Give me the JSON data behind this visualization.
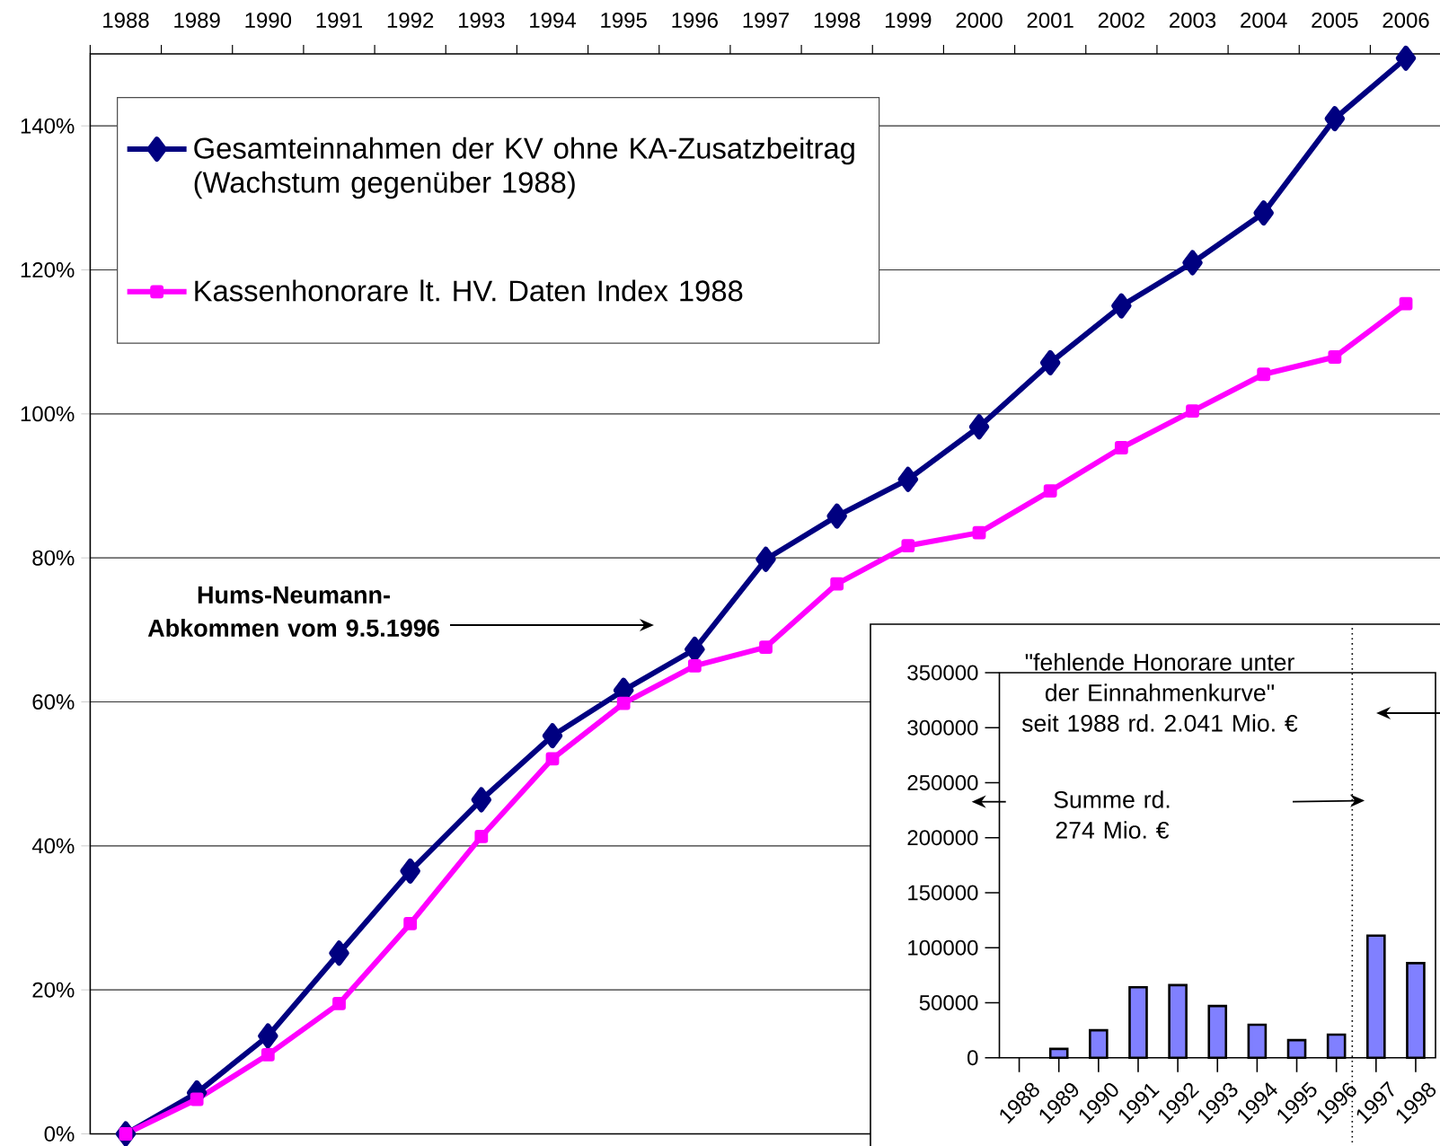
{
  "chart_data": [
    {
      "type": "line",
      "categories": [
        "1988",
        "1989",
        "1990",
        "1991",
        "1992",
        "1993",
        "1994",
        "1995",
        "1996",
        "1997",
        "1998",
        "1999",
        "2000",
        "2001",
        "2002",
        "2003",
        "2004",
        "2005",
        "2006"
      ],
      "ylim": [
        0,
        150
      ],
      "yticks": [
        {
          "value": 0,
          "label": "0%"
        },
        {
          "value": 20,
          "label": "20%"
        },
        {
          "value": 40,
          "label": "40%"
        },
        {
          "value": 60,
          "label": "60%"
        },
        {
          "value": 80,
          "label": "80%"
        },
        {
          "value": 100,
          "label": "100%"
        },
        {
          "value": 120,
          "label": "120%"
        },
        {
          "value": 140,
          "label": "140%"
        }
      ],
      "grid": "y",
      "legend": "top left",
      "line_style": "solid",
      "annotations": [
        "Hums-Neumann-Abkommen vom 9.5.1996"
      ],
      "series": [
        {
          "name": "Gesamteinnahmen der KV ohne KA-Zusatzbeitrag (Wachstum gegenüber 1988)",
          "color": "#000080",
          "marker": "diamond",
          "values": [
            0,
            5.7,
            13.6,
            25.1,
            36.5,
            46.4,
            55.3,
            61.6,
            67.3,
            79.8,
            85.8,
            90.9,
            98.2,
            107.1,
            115.0,
            121.0,
            127.9,
            141.0,
            149.4
          ]
        },
        {
          "name": "Kassenhonorare lt. HV. Daten Index 1988",
          "color": "#ff00ff",
          "marker": "square",
          "values": [
            0,
            4.8,
            11.0,
            18.1,
            29.2,
            41.3,
            52.1,
            59.8,
            65.0,
            67.6,
            76.4,
            81.7,
            83.5,
            89.3,
            95.3,
            100.4,
            105.5,
            107.9,
            115.3
          ]
        }
      ]
    },
    {
      "type": "bar",
      "x": [
        1989,
        1990,
        1991,
        1992,
        1993,
        1994,
        1995,
        1996,
        1997,
        1998
      ],
      "values": [
        8000,
        25000,
        64000,
        66000,
        47000,
        30000,
        16000,
        21000,
        111000,
        86000
      ],
      "color": "#8080ff",
      "xlim": [
        1987.5,
        1998.5
      ],
      "xticks": [
        1988,
        1989,
        1990,
        1991,
        1992,
        1993,
        1994,
        1995,
        1996,
        1997,
        1998
      ],
      "ylim": [
        0,
        350000
      ],
      "yticks": [
        0,
        50000,
        100000,
        150000,
        200000,
        250000,
        300000,
        350000
      ],
      "ref_lines": [
        {
          "axis": "x",
          "value": 1996.4,
          "line_style": "dotted"
        }
      ],
      "annotations": [
        "\"fehlende Honorare unter der Einnahmenkurve\"",
        "seit 1988 rd. 2.041 Mio. €",
        "Summe rd. 274 Mio. €"
      ]
    }
  ]
}
